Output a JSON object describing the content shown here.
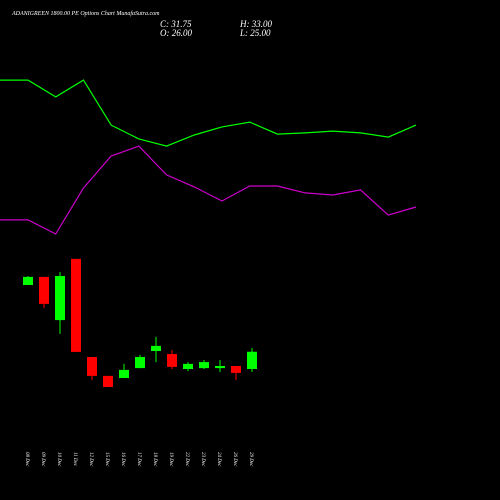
{
  "chart_data": {
    "type": "candlestick",
    "title": "ADANIGREEN  1800.00  PE Options  Chart  MunafaSutra.com",
    "ohlc_labels": [
      "C: 31.75",
      "H: 33.00",
      "O: 26.00",
      "L: 25.00"
    ],
    "categories": [
      "08 Dec",
      "09 Dec",
      "10 Dec",
      "11 Dec",
      "12 Dec",
      "15 Dec",
      "16 Dec",
      "17 Dec",
      "18 Dec",
      "19 Dec",
      "22 Dec",
      "23 Dec",
      "24 Dec",
      "26 Dec",
      "29 Dec"
    ],
    "open": [
      54,
      56.7,
      42.3,
      62.7,
      30,
      23.7,
      23,
      26.3,
      32,
      31,
      26,
      26.3,
      26.3,
      27,
      26
    ],
    "high": [
      57,
      56.7,
      58.3,
      62.7,
      30,
      23.7,
      27.7,
      30.7,
      36.7,
      32.3,
      28.3,
      29,
      29,
      27,
      33
    ],
    "low": [
      54,
      46.3,
      37.7,
      31.7,
      22.3,
      20,
      23,
      26.3,
      28.3,
      26,
      25.3,
      26,
      25,
      22.3,
      25
    ],
    "close": [
      56.7,
      47.7,
      57,
      31.7,
      23.7,
      20,
      25.7,
      30,
      33.7,
      26.7,
      27.7,
      28.3,
      27,
      24.7,
      31.75
    ],
    "up_color": "#00ff00",
    "down_color": "#ff0000",
    "lines": [
      {
        "color": "#00ff00",
        "values": [
          122.3,
          116.7,
          122.3,
          107.3,
          102.7,
          100.3,
          104,
          106.7,
          108.3,
          104.3,
          104.7,
          105.3,
          104.7,
          103.3,
          107.3
        ]
      },
      {
        "color": "#cc00cc",
        "values": [
          75.7,
          71,
          86.3,
          97,
          100.3,
          90.7,
          86.7,
          82,
          87,
          87,
          84.7,
          84,
          85.7,
          77.3,
          80
        ]
      }
    ],
    "ylim": [
      -17,
      149
    ]
  }
}
